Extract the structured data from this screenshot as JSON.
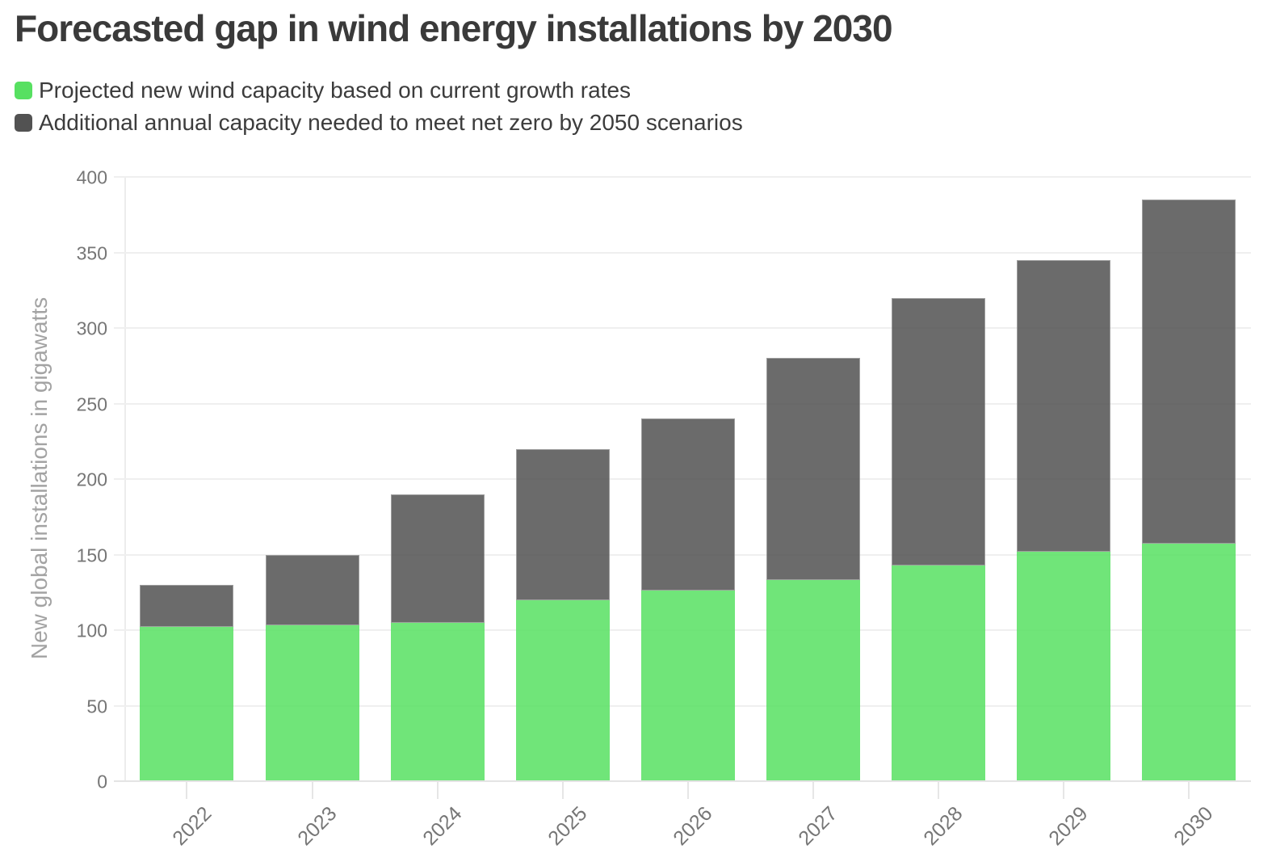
{
  "header": {
    "title": "Forecasted gap in wind energy installations by 2030"
  },
  "legend": [
    {
      "label": "Projected new wind capacity based on current growth rates",
      "color": "#57e061"
    },
    {
      "label": "Additional annual capacity needed to meet net zero by 2050 scenarios",
      "color": "#525252"
    }
  ],
  "chart_data": {
    "type": "bar",
    "stacked": true,
    "title": "Forecasted gap in wind energy installations by 2030",
    "xlabel": "",
    "ylabel": "New global installations in gigawatts",
    "categories": [
      "2022",
      "2023",
      "2024",
      "2025",
      "2026",
      "2027",
      "2028",
      "2029",
      "2030"
    ],
    "series": [
      {
        "name": "Projected new wind capacity based on current growth rates",
        "color": "#57e061",
        "values": [
          102,
          103,
          105,
          120,
          126,
          133,
          143,
          152,
          157
        ]
      },
      {
        "name": "Additional annual capacity needed to meet net zero by 2050 scenarios",
        "color": "#525252",
        "values": [
          28,
          47,
          85,
          100,
          114,
          147,
          177,
          193,
          228
        ]
      }
    ],
    "stack_totals": [
      130,
      150,
      190,
      220,
      240,
      280,
      320,
      345,
      385
    ],
    "ylim": [
      0,
      400
    ],
    "yticks": [
      0,
      50,
      100,
      150,
      200,
      250,
      300,
      350,
      400
    ],
    "grid": true,
    "legend_position": "top-left"
  }
}
